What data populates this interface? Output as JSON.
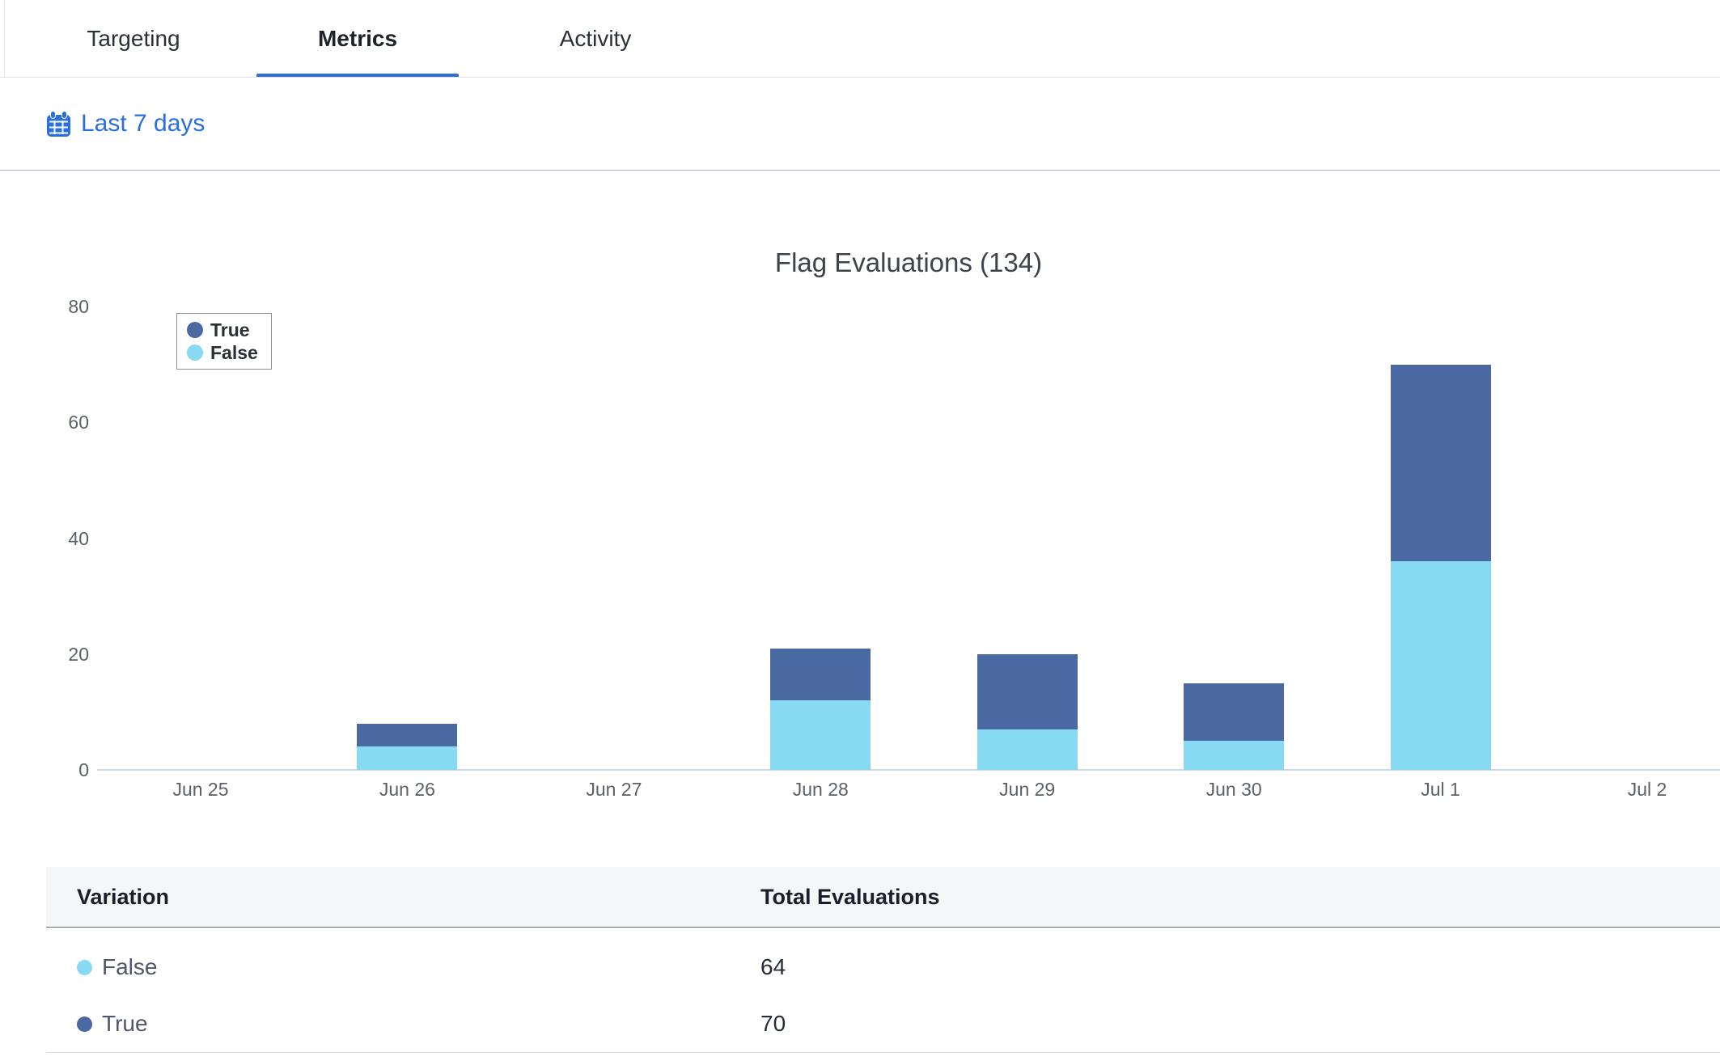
{
  "tabs": [
    {
      "label": "Targeting",
      "active": false
    },
    {
      "label": "Metrics",
      "active": true
    },
    {
      "label": "Activity",
      "active": false
    }
  ],
  "date_range": {
    "label": "Last 7 days",
    "icon": "calendar-icon"
  },
  "chart_data": {
    "type": "bar",
    "stacked": true,
    "title": "Flag Evaluations (134)",
    "total_evaluations": 134,
    "categories": [
      "Jun 25",
      "Jun 26",
      "Jun 27",
      "Jun 28",
      "Jun 29",
      "Jun 30",
      "Jul 1",
      "Jul 2"
    ],
    "series": [
      {
        "name": "True",
        "color": "#4a68a2",
        "values": [
          0,
          4,
          0,
          9,
          13,
          10,
          34,
          0
        ]
      },
      {
        "name": "False",
        "color": "#87daf1",
        "values": [
          0,
          4,
          0,
          12,
          7,
          5,
          36,
          0
        ]
      }
    ],
    "stack_bottom_to_top": [
      "False",
      "True"
    ],
    "ylim": [
      0,
      80
    ],
    "yticks": [
      0,
      20,
      40,
      60,
      80
    ],
    "xlabel": "",
    "ylabel": "",
    "grid": false,
    "legend_position": "top-left"
  },
  "table": {
    "columns": [
      "Variation",
      "Total Evaluations"
    ],
    "rows": [
      {
        "variation": "False",
        "color": "#87daf1",
        "total": "64"
      },
      {
        "variation": "True",
        "color": "#4a68a2",
        "total": "70"
      }
    ]
  },
  "colors": {
    "accent_blue": "#2a6fdb",
    "tab_underline": "#2e70dc",
    "axis_line": "#ccd7ec",
    "header_bg": "#f5f6f8"
  }
}
